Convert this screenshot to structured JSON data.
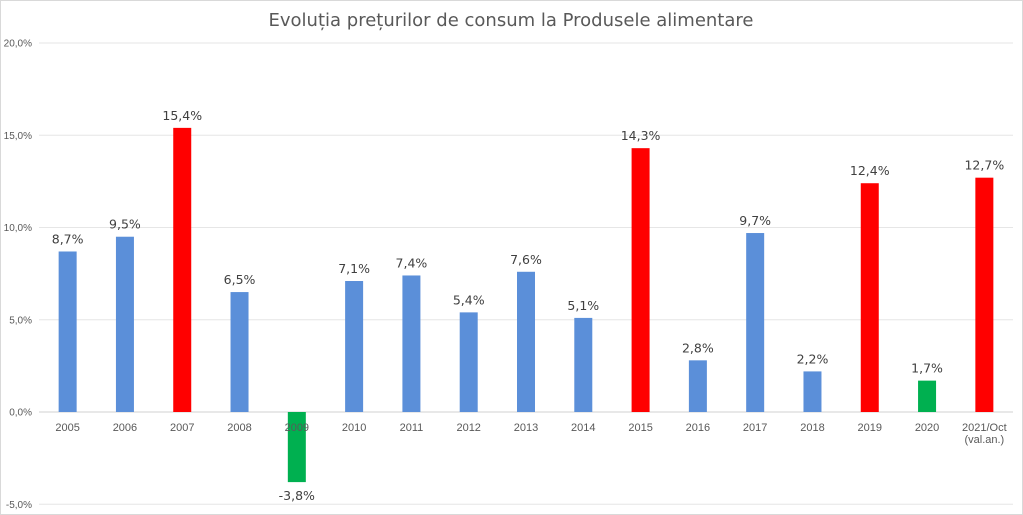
{
  "chart_data": {
    "type": "bar",
    "title": "Evoluția prețurilor de consum la Produsele alimentare",
    "xlabel": "",
    "ylabel": "",
    "ylim": [
      -5,
      20
    ],
    "yticks": [
      {
        "value": 20,
        "label": "20,0%"
      },
      {
        "value": 15,
        "label": "15,0%"
      },
      {
        "value": 10,
        "label": "10,0%"
      },
      {
        "value": 5,
        "label": "5,0%"
      },
      {
        "value": 0,
        "label": "0,0%"
      },
      {
        "value": -5,
        "label": "-5,0%"
      }
    ],
    "grid": true,
    "legend": "none",
    "colors": {
      "normal": "#5b8fd9",
      "high": "#ff0000",
      "low": "#00b050"
    },
    "categories": [
      "2005",
      "2006",
      "2007",
      "2008",
      "2009",
      "2010",
      "2011",
      "2012",
      "2013",
      "2014",
      "2015",
      "2016",
      "2017",
      "2018",
      "2019",
      "2020",
      "2021/Oct (val.an.)"
    ],
    "category_lines": [
      [
        "2005"
      ],
      [
        "2006"
      ],
      [
        "2007"
      ],
      [
        "2008"
      ],
      [
        "2009"
      ],
      [
        "2010"
      ],
      [
        "2011"
      ],
      [
        "2012"
      ],
      [
        "2013"
      ],
      [
        "2014"
      ],
      [
        "2015"
      ],
      [
        "2016"
      ],
      [
        "2017"
      ],
      [
        "2018"
      ],
      [
        "2019"
      ],
      [
        "2020"
      ],
      [
        "2021/Oct",
        "(val.an.)"
      ]
    ],
    "values": [
      8.7,
      9.5,
      15.4,
      6.5,
      -3.8,
      7.1,
      7.4,
      5.4,
      7.6,
      5.1,
      14.3,
      2.8,
      9.7,
      2.2,
      12.4,
      1.7,
      12.7
    ],
    "value_labels": [
      "8,7%",
      "9,5%",
      "15,4%",
      "6,5%",
      "-3,8%",
      "7,1%",
      "7,4%",
      "5,4%",
      "7,6%",
      "5,1%",
      "14,3%",
      "2,8%",
      "9,7%",
      "2,2%",
      "12,4%",
      "1,7%",
      "12,7%"
    ],
    "bar_colors": [
      "normal",
      "normal",
      "high",
      "normal",
      "low",
      "normal",
      "normal",
      "normal",
      "normal",
      "normal",
      "high",
      "normal",
      "normal",
      "normal",
      "high",
      "low",
      "high"
    ]
  }
}
